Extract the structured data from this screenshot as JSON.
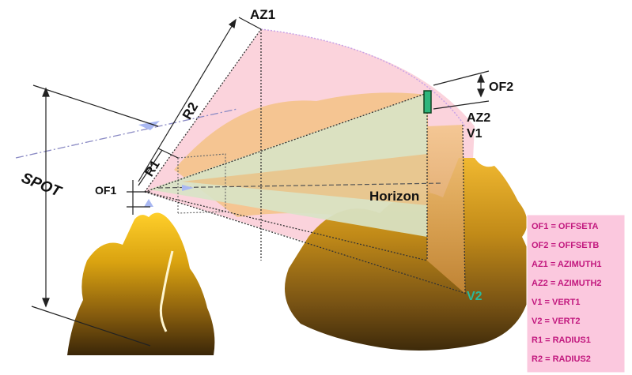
{
  "labels": {
    "az1": "AZ1",
    "az2": "AZ2",
    "r1": "R1",
    "r2": "R2",
    "of1": "OF1",
    "of2": "OF2",
    "v1": "V1",
    "v2": "V2",
    "spot": "SPOT",
    "horizon": "Horizon"
  },
  "legend": {
    "items": [
      "OF1 = OFFSETA",
      "OF2 = OFFSETB",
      "AZ1 = AZIMUTH1",
      "AZ2 = AZIMUTH2",
      "V1 = VERT1",
      "V2 = VERT2",
      "R1 = RADIUS1",
      "R2 = RADIUS2"
    ]
  },
  "colors": {
    "cone_pink": "#fbd3dc",
    "cone_edge": "#c9a3e6",
    "terrain_gold": "#d49d10",
    "terrain_dark": "#4a3410",
    "terrain_back": "#f4c38a",
    "view_band": "#d8e3c6",
    "legend_bg": "#fbc8de",
    "legend_text": "#c2187e",
    "v2_color": "#2ab89a",
    "observer_arrow": "#a9b8f2",
    "target_marker": "#2eb57c"
  }
}
